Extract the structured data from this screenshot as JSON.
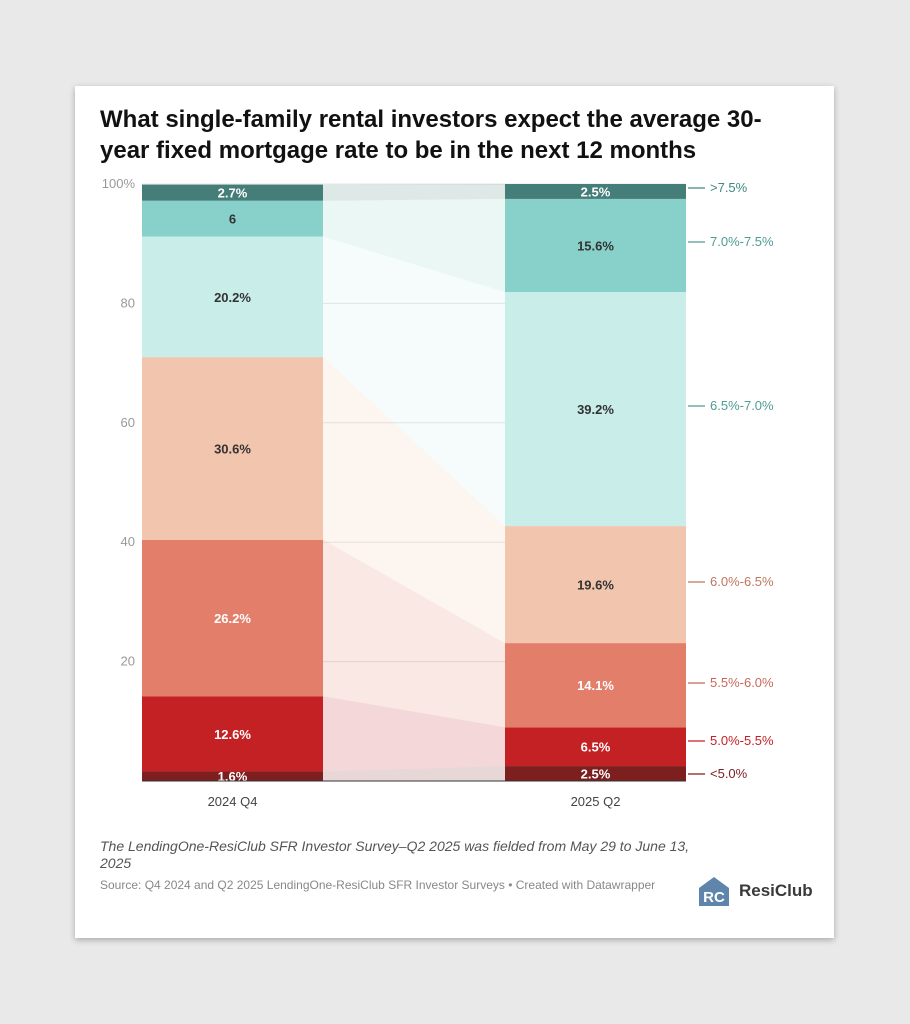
{
  "title": "What single-family rental investors expect the average 30-year fixed mortgage rate to be in the next 12 months",
  "note": "The LendingOne-ResiClub SFR Investor Survey–Q2 2025 was fielded from May 29 to June 13, 2025",
  "source": "Source: Q4 2024 and Q2 2025 LendingOne-ResiClub SFR Investor Surveys • Created with Datawrapper",
  "logo": {
    "text": "ResiClub",
    "mark": "RC"
  },
  "chart_data": {
    "type": "bar",
    "stacked": true,
    "normalized": true,
    "categories": [
      "2024 Q4",
      "2025 Q2"
    ],
    "ylim": [
      0,
      100
    ],
    "yticks": [
      20,
      40,
      60,
      80,
      100
    ],
    "ytick_labels": [
      "20",
      "40",
      "60",
      "80",
      "100%"
    ],
    "grid": true,
    "legend_placement": "right",
    "series": [
      {
        "name": "<5.0%",
        "values": [
          1.6,
          2.5
        ],
        "color": "#7d1f1f",
        "label_color": "#7d1f1f",
        "text_color": "#ffffff"
      },
      {
        "name": "5.0%-5.5%",
        "values": [
          12.6,
          6.5
        ],
        "color": "#c42125",
        "label_color": "#c42125",
        "text_color": "#ffffff"
      },
      {
        "name": "5.5%-6.0%",
        "values": [
          26.2,
          14.1
        ],
        "color": "#e37e6b",
        "label_color": "#c8685a",
        "text_color": "#ffffff"
      },
      {
        "name": "6.0%-6.5%",
        "values": [
          30.6,
          19.6
        ],
        "color": "#f1c5ae",
        "label_color": "#c0765e",
        "text_color": "#333333"
      },
      {
        "name": "6.5%-7.0%",
        "values": [
          20.2,
          39.2
        ],
        "color": "#c9ede9",
        "label_color": "#4e9c94",
        "text_color": "#333333"
      },
      {
        "name": "7.0%-7.5%",
        "values": [
          6,
          15.6
        ],
        "color": "#88d0ca",
        "label_color": "#4e9c94",
        "text_color": "#333333"
      },
      {
        "name": ">7.5%",
        "values": [
          2.7,
          2.5
        ],
        "color": "#457d78",
        "label_color": "#3e8a82",
        "text_color": "#ffffff"
      }
    ]
  }
}
